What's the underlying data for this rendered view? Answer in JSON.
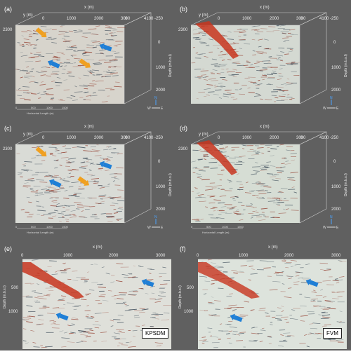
{
  "panels": [
    {
      "id": "a",
      "label": "(a)",
      "xlabel": "x (m)",
      "ylabel": "y (m)",
      "depth_label": "Depth (m.b.s.l)",
      "x_ticks": [
        "0",
        "1000",
        "2000",
        "3000",
        "4100"
      ],
      "y_ticks": [
        "2300",
        "0"
      ],
      "depth_ticks": [
        "-250",
        "0",
        "1000",
        "2000"
      ],
      "scale_ticks": [
        "0",
        "500",
        "1000",
        "1500"
      ],
      "scale_label": "Horizontal Length (m)",
      "compass": [
        "N",
        "W",
        "E"
      ]
    },
    {
      "id": "b",
      "label": "(b)",
      "xlabel": "x (m)",
      "ylabel": "y (m)",
      "depth_label": "Depth (m.b.s.l)",
      "x_ticks": [
        "0",
        "1000",
        "2000",
        "3000",
        "4100"
      ],
      "y_ticks": [
        "2300",
        "0"
      ],
      "depth_ticks": [
        "-250",
        "0",
        "1000",
        "2000"
      ],
      "compass": [
        "N",
        "W",
        "E"
      ]
    },
    {
      "id": "c",
      "label": "(c)",
      "xlabel": "x (m)",
      "ylabel": "y (m)",
      "depth_label": "Depth (m.b.s.l)",
      "x_ticks": [
        "0",
        "1000",
        "2000",
        "3000",
        "4100"
      ],
      "y_ticks": [
        "2300",
        "0"
      ],
      "depth_ticks": [
        "-250",
        "0",
        "1000",
        "2000"
      ],
      "scale_ticks": [
        "0",
        "500",
        "1000",
        "1500"
      ],
      "scale_label": "Horizontal Length (m)",
      "compass": [
        "N",
        "W",
        "E"
      ]
    },
    {
      "id": "d",
      "label": "(d)",
      "xlabel": "x (m)",
      "ylabel": "y (m)",
      "depth_label": "Depth (m.b.s.l)",
      "x_ticks": [
        "0",
        "1000",
        "2000",
        "3000",
        "4100"
      ],
      "y_ticks": [
        "2300",
        "0"
      ],
      "depth_ticks": [
        "-250",
        "0",
        "1000",
        "2000"
      ],
      "scale_ticks": [
        "0",
        "500",
        "1000",
        "1500"
      ],
      "scale_label": "Horizontal Length (m)",
      "compass": [
        "N",
        "W",
        "E"
      ]
    },
    {
      "id": "e",
      "label": "(e)",
      "xlabel": "x (m)",
      "depth_label": "Depth (m.b.s.l)",
      "x_ticks": [
        "0",
        "1000",
        "2000",
        "3000"
      ],
      "depth_ticks": [
        "500",
        "1000"
      ],
      "method": "KPSDM"
    },
    {
      "id": "f",
      "label": "(f)",
      "xlabel": "x (m)",
      "depth_label": "Depth (m.b.s.l)",
      "x_ticks": [
        "0",
        "1000",
        "2000",
        "3000"
      ],
      "depth_ticks": [
        "500",
        "1000"
      ],
      "method": "FVM"
    }
  ],
  "colors": {
    "background": "#606060",
    "seismic_pos": "#9a1c0a",
    "seismic_neg": "#1d3a52",
    "arrow_blue": "#1f7fd6",
    "arrow_orange": "#f0a020",
    "fault": "#c8351f"
  }
}
